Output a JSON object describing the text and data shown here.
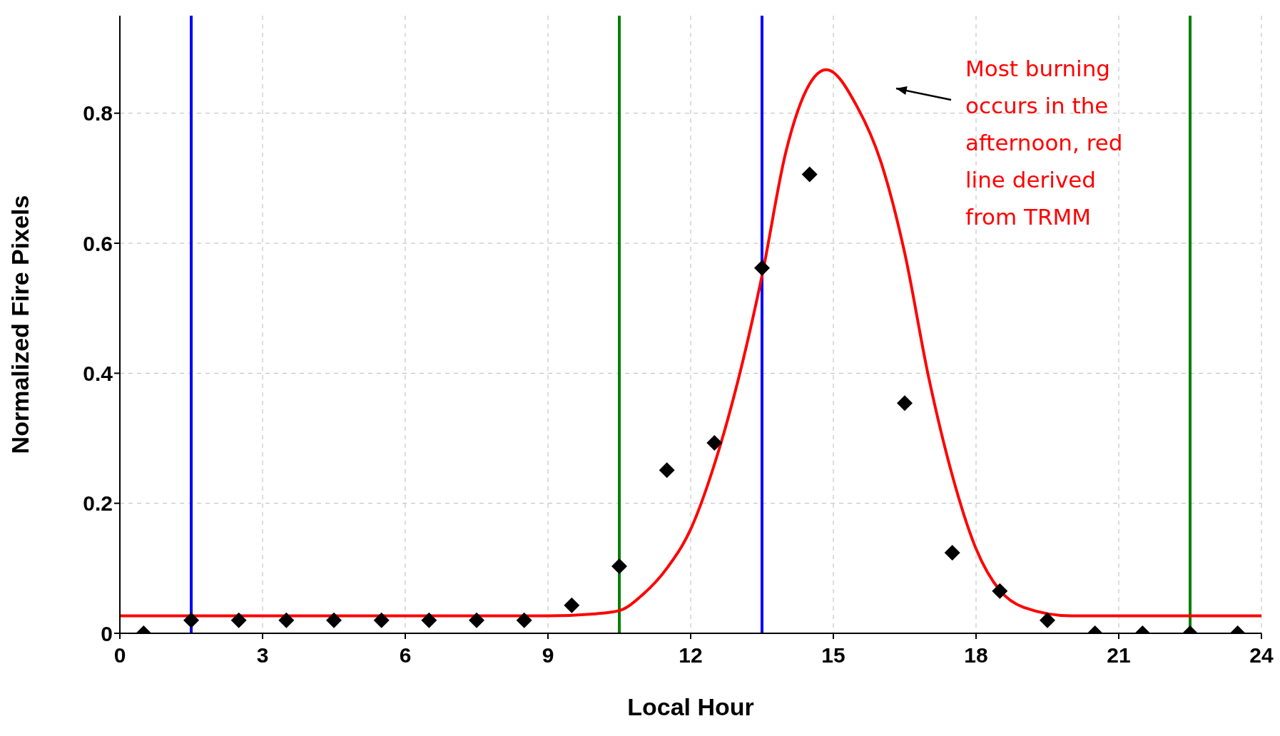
{
  "chart_data": {
    "type": "scatter",
    "xlabel": "Local Hour",
    "ylabel": "Normalized Fire Pixels",
    "xlim": [
      0,
      24
    ],
    "xticks": [
      0,
      3,
      6,
      9,
      12,
      15,
      18,
      21,
      24
    ],
    "ylim": [
      0,
      0.95
    ],
    "yticks": [
      0,
      0.2,
      0.4,
      0.6,
      0.8
    ],
    "grid": true,
    "marker": "diamond",
    "series": [
      {
        "color": "#000000",
        "x": [
          0.5,
          1.5,
          2.5,
          3.5,
          4.5,
          5.5,
          6.5,
          7.5,
          8.5,
          9.5,
          10.5,
          11.5,
          12.5,
          13.5,
          14.5,
          16.5,
          17.5,
          18.5,
          19.5,
          20.5,
          21.5,
          22.5,
          23.5
        ],
        "values": [
          0,
          0.02,
          0.02,
          0.02,
          0.02,
          0.02,
          0.02,
          0.02,
          0.02,
          0.043,
          0.103,
          0.251,
          0.293,
          0.562,
          0.706,
          0.354,
          0.124,
          0.065,
          0.02,
          0,
          0,
          0,
          0
        ]
      },
      {
        "type": "line",
        "color": "#ff0000",
        "marker": "none",
        "line_style": "solid",
        "x": [
          0,
          9,
          10,
          10.5,
          11,
          11.5,
          12,
          12.5,
          13,
          13.5,
          14,
          14.5,
          14.85,
          15.5,
          16,
          16.5,
          17,
          17.5,
          18,
          18.5,
          19,
          20,
          24
        ],
        "values": [
          0.027,
          0.027,
          0.03,
          0.035,
          0.06,
          0.1,
          0.16,
          0.26,
          0.39,
          0.55,
          0.74,
          0.845,
          0.867,
          0.81,
          0.725,
          0.585,
          0.395,
          0.243,
          0.13,
          0.066,
          0.04,
          0.027,
          0.027
        ]
      }
    ],
    "ref_lines": [
      {
        "axis": "x",
        "value": 1.5,
        "color": "#0000ff"
      },
      {
        "axis": "x",
        "value": 13.5,
        "color": "#0000ff"
      },
      {
        "axis": "x",
        "value": 10.5,
        "color": "#008000"
      },
      {
        "axis": "x",
        "value": 22.5,
        "color": "#008000"
      }
    ],
    "annotations": [
      "Most burning occurs in the afternoon, red line derived from TRMM"
    ]
  }
}
